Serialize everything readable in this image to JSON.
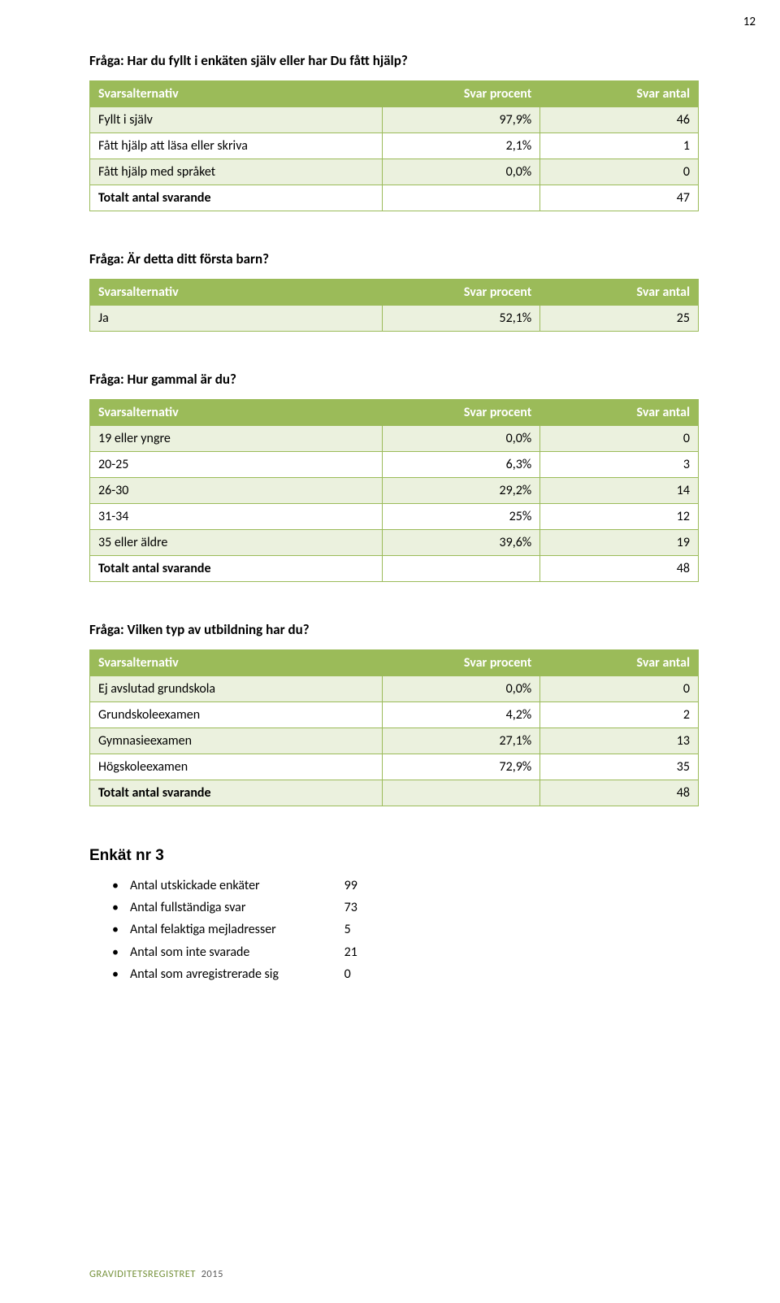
{
  "page_number": "12",
  "header_colors": {
    "bg": "#9bbb59",
    "text": "#ffffff",
    "border": "#9bbb59",
    "row_alt": "#ebf1de"
  },
  "col_headers": {
    "alt": "Svarsalternativ",
    "pct": "Svar procent",
    "val": "Svar antal"
  },
  "q1": {
    "title": "Fråga: Har du fyllt i enkäten själv eller har Du fått hjälp?",
    "rows": [
      {
        "label": "Fyllt i själv",
        "pct": "97,9%",
        "val": "46"
      },
      {
        "label": "Fått hjälp att läsa eller skriva",
        "pct": "2,1%",
        "val": "1"
      },
      {
        "label": "Fått hjälp med språket",
        "pct": "0,0%",
        "val": "0"
      }
    ],
    "total": {
      "label": "Totalt antal svarande",
      "val": "47"
    }
  },
  "q2": {
    "title": "Fråga: Är detta ditt första barn?",
    "rows": [
      {
        "label": "Ja",
        "pct": "52,1%",
        "val": "25"
      }
    ]
  },
  "q3": {
    "title": "Fråga: Hur gammal är du?",
    "rows": [
      {
        "label": "19 eller yngre",
        "pct": "0,0%",
        "val": "0"
      },
      {
        "label": "20-25",
        "pct": "6,3%",
        "val": "3"
      },
      {
        "label": "26-30",
        "pct": "29,2%",
        "val": "14"
      },
      {
        "label": "31-34",
        "pct": "25%",
        "val": "12"
      },
      {
        "label": "35 eller äldre",
        "pct": "39,6%",
        "val": "19"
      }
    ],
    "total": {
      "label": "Totalt antal svarande",
      "val": "48"
    }
  },
  "q4": {
    "title": "Fråga: Vilken typ av utbildning har du?",
    "rows": [
      {
        "label": "Ej avslutad grundskola",
        "pct": "0,0%",
        "val": "0"
      },
      {
        "label": "Grundskoleexamen",
        "pct": "4,2%",
        "val": "2"
      },
      {
        "label": "Gymnasieexamen",
        "pct": "27,1%",
        "val": "13"
      },
      {
        "label": "Högskoleexamen",
        "pct": "72,9%",
        "val": "35"
      }
    ],
    "total": {
      "label": "Totalt antal svarande",
      "val": "48"
    }
  },
  "enkat": {
    "heading": "Enkät nr 3",
    "items": [
      {
        "label": "Antal utskickade enkäter",
        "val": "99"
      },
      {
        "label": "Antal fullständiga svar",
        "val": "73"
      },
      {
        "label": "Antal felaktiga mejladresser",
        "val": "5"
      },
      {
        "label": "Antal som inte svarade",
        "val": "21"
      },
      {
        "label": "Antal som avregistrerade sig",
        "val": "0"
      }
    ]
  },
  "footer": {
    "brand": "GRAVIDITETSREGISTRET",
    "year": "2015"
  }
}
